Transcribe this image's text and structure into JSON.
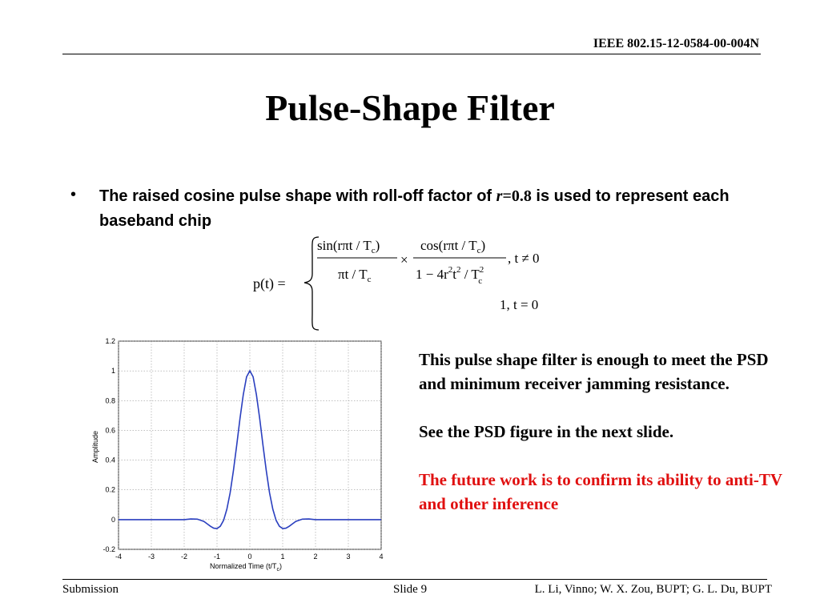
{
  "header": {
    "doc_id": "IEEE 802.15-12-0584-00-004N"
  },
  "title": "Pulse-Shape Filter",
  "bullet": {
    "marker": "•",
    "text_before": "The raised cosine pulse shape with roll-off factor of ",
    "r_symbol": "r",
    "r_value": "=0.8",
    "text_after": " is used to represent each baseband chip"
  },
  "formula": {
    "lhs": "p(t) =",
    "num1": "sin(rπt / T",
    "num1_close": ")",
    "den1": "πt / T",
    "times": "×",
    "num2": "cos(rπt / T",
    "num2_close": ")",
    "den2_a": "1 − 4r",
    "den2_b": "t",
    "den2_c": " / T",
    "sub_c": "c",
    "sup_2": "2",
    "cond1": ", t ≠ 0",
    "case2": "1, t = 0"
  },
  "chart_data": {
    "type": "line",
    "title": "",
    "xlabel": "Normalized Time (t/T",
    "xlabel_sub": "c",
    "xlabel_close": ")",
    "ylabel": "Amplitude",
    "xlim": [
      -4,
      4
    ],
    "ylim": [
      -0.2,
      1.2
    ],
    "xticks": [
      "-4",
      "-3",
      "-2",
      "-1",
      "0",
      "1",
      "2",
      "3",
      "4"
    ],
    "yticks": [
      "-0.2",
      "0",
      "0.2",
      "0.4",
      "0.6",
      "0.8",
      "1",
      "1.2"
    ],
    "grid": true,
    "series": [
      {
        "x": [
          -4,
          -3.5,
          -3,
          -2.5,
          -2,
          -1.8,
          -1.6,
          -1.4,
          -1.3,
          -1.2,
          -1.1,
          -1,
          -0.9,
          -0.8,
          -0.7,
          -0.6,
          -0.5,
          -0.4,
          -0.3,
          -0.2,
          -0.1,
          0,
          0.1,
          0.2,
          0.3,
          0.4,
          0.5,
          0.6,
          0.7,
          0.8,
          0.9,
          1,
          1.1,
          1.2,
          1.3,
          1.4,
          1.6,
          1.8,
          2,
          2.5,
          3,
          3.5,
          4
        ],
        "y": [
          0,
          0,
          0,
          0,
          0.0,
          0.004,
          0.003,
          -0.012,
          -0.028,
          -0.045,
          -0.058,
          -0.06,
          -0.045,
          -0.005,
          0.07,
          0.18,
          0.33,
          0.5,
          0.68,
          0.84,
          0.96,
          1.0,
          0.96,
          0.84,
          0.68,
          0.5,
          0.33,
          0.18,
          0.07,
          -0.005,
          -0.045,
          -0.06,
          -0.058,
          -0.045,
          -0.028,
          -0.012,
          0.003,
          0.004,
          0.0,
          0,
          0,
          0,
          0
        ],
        "color": "#2a3fbf"
      }
    ]
  },
  "side_text": {
    "p1": "This pulse shape filter is enough to meet the PSD and minimum receiver jamming resistance.",
    "p2": "See the PSD figure in the next slide.",
    "p3": "The future work is to confirm its ability to anti-TV and other inference",
    "p3_color": "#e01010"
  },
  "footer": {
    "left": "Submission",
    "middle": "Slide 9",
    "right": "L. Li, Vinno; W. X. Zou, BUPT; G. L. Du, BUPT"
  }
}
